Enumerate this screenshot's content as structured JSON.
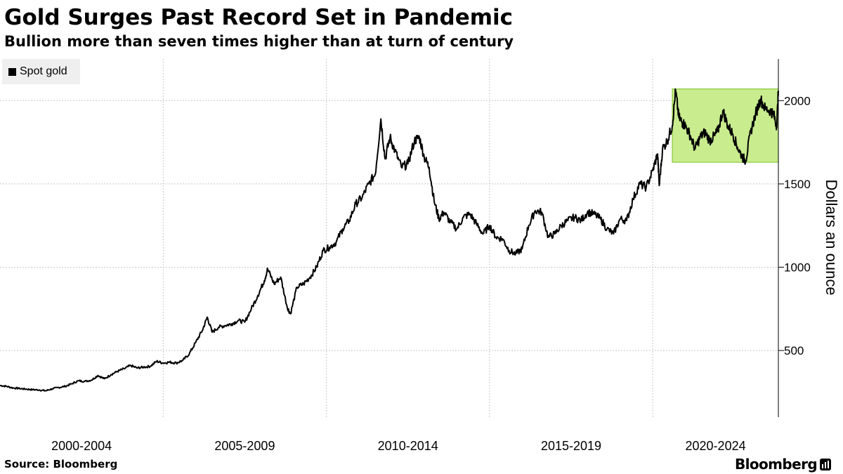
{
  "header": {
    "title": "Gold Surges Past Record Set in Pandemic",
    "subtitle": "Bullion more than seven times higher than at turn of century"
  },
  "legend": {
    "label": "Spot gold"
  },
  "footer": {
    "source": "Source: Bloomberg",
    "brand": "Bloomberg"
  },
  "colors": {
    "line": "#000000",
    "highlight_fill": "#c8ec8e",
    "highlight_stroke": "#79c11f",
    "grid": "#c8c8c8",
    "legend_bg": "#efefef"
  },
  "chart_data": {
    "type": "line",
    "title": "Gold Surges Past Record Set in Pandemic",
    "subtitle": "Bullion more than seven times higher than at turn of century",
    "ylabel": "Dollars an ounce",
    "xlabel": "",
    "x_tick_labels": [
      "2000-2004",
      "2005-2009",
      "2010-2014",
      "2015-2019",
      "2020-2024"
    ],
    "y_ticks": [
      500,
      1000,
      1500,
      2000
    ],
    "ylim": [
      100,
      2250
    ],
    "xlim": [
      2000.0,
      2023.85
    ],
    "grid": true,
    "legend_position": "top-left",
    "highlight_region": {
      "x": [
        2020.6,
        2023.85
      ],
      "y": [
        1630,
        2070
      ]
    },
    "series": [
      {
        "name": "Spot gold",
        "x": [
          2000.0,
          2000.2,
          2000.4,
          2000.6,
          2000.8,
          2001.0,
          2001.2,
          2001.4,
          2001.6,
          2001.8,
          2002.0,
          2002.2,
          2002.4,
          2002.6,
          2002.8,
          2003.0,
          2003.2,
          2003.4,
          2003.6,
          2003.8,
          2004.0,
          2004.2,
          2004.4,
          2004.6,
          2004.8,
          2005.0,
          2005.2,
          2005.4,
          2005.6,
          2005.8,
          2006.0,
          2006.2,
          2006.35,
          2006.5,
          2006.7,
          2006.9,
          2007.1,
          2007.3,
          2007.5,
          2007.7,
          2007.9,
          2008.1,
          2008.2,
          2008.4,
          2008.6,
          2008.8,
          2008.9,
          2009.1,
          2009.3,
          2009.5,
          2009.7,
          2009.9,
          2010.1,
          2010.3,
          2010.5,
          2010.7,
          2010.9,
          2011.1,
          2011.3,
          2011.5,
          2011.67,
          2011.8,
          2011.95,
          2012.1,
          2012.3,
          2012.5,
          2012.7,
          2012.85,
          2013.0,
          2013.15,
          2013.3,
          2013.45,
          2013.6,
          2013.8,
          2014.0,
          2014.2,
          2014.4,
          2014.6,
          2014.8,
          2015.0,
          2015.2,
          2015.4,
          2015.6,
          2015.8,
          2016.0,
          2016.2,
          2016.4,
          2016.6,
          2016.8,
          2017.0,
          2017.2,
          2017.4,
          2017.6,
          2017.8,
          2018.0,
          2018.2,
          2018.4,
          2018.6,
          2018.8,
          2019.0,
          2019.2,
          2019.4,
          2019.6,
          2019.8,
          2020.0,
          2020.15,
          2020.2,
          2020.3,
          2020.45,
          2020.6,
          2020.7,
          2020.8,
          2020.9,
          2021.0,
          2021.15,
          2021.3,
          2021.45,
          2021.6,
          2021.75,
          2021.9,
          2022.0,
          2022.15,
          2022.3,
          2022.45,
          2022.6,
          2022.75,
          2022.85,
          2023.0,
          2023.15,
          2023.3,
          2023.45,
          2023.6,
          2023.7,
          2023.8,
          2023.85
        ],
        "values": [
          290,
          285,
          275,
          272,
          268,
          265,
          263,
          258,
          270,
          278,
          285,
          300,
          318,
          315,
          322,
          350,
          330,
          355,
          375,
          390,
          410,
          395,
          400,
          405,
          435,
          425,
          430,
          425,
          440,
          480,
          550,
          620,
          700,
          610,
          640,
          650,
          660,
          680,
          670,
          750,
          830,
          920,
          990,
          900,
          940,
          760,
          720,
          880,
          900,
          940,
          1000,
          1100,
          1120,
          1150,
          1230,
          1280,
          1380,
          1420,
          1500,
          1560,
          1890,
          1650,
          1780,
          1700,
          1600,
          1620,
          1760,
          1780,
          1660,
          1600,
          1400,
          1290,
          1330,
          1270,
          1230,
          1300,
          1320,
          1260,
          1200,
          1250,
          1180,
          1170,
          1100,
          1080,
          1110,
          1250,
          1340,
          1330,
          1180,
          1200,
          1250,
          1280,
          1300,
          1280,
          1330,
          1320,
          1290,
          1230,
          1200,
          1290,
          1280,
          1410,
          1500,
          1480,
          1580,
          1680,
          1490,
          1710,
          1760,
          1850,
          2060,
          1900,
          1870,
          1850,
          1790,
          1710,
          1780,
          1810,
          1760,
          1790,
          1820,
          1940,
          1850,
          1800,
          1720,
          1660,
          1640,
          1810,
          1920,
          2010,
          1950,
          1940,
          1920,
          1850,
          2060
        ]
      }
    ]
  }
}
